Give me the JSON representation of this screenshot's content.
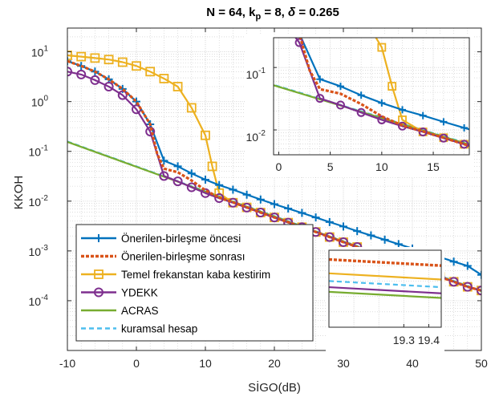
{
  "chart_data": {
    "type": "line",
    "title": {
      "main": "N = 64, k",
      "sub": "p",
      "mid": " = 8, ",
      "greek": "δ",
      "tail": " = 0.265"
    },
    "xlabel": "SİGO(dB)",
    "ylabel": "KKOH",
    "xlim": [
      -10,
      50
    ],
    "ylim": [
      1e-05,
      30
    ],
    "yscale": "log",
    "grid": true,
    "legend_position": "bottom-left",
    "x_ticks": [
      {
        "v": -10,
        "label": "-10"
      },
      {
        "v": 0,
        "label": "0"
      },
      {
        "v": 10,
        "label": "10"
      },
      {
        "v": 20,
        "label": "20"
      },
      {
        "v": 30,
        "label": "30"
      },
      {
        "v": 40,
        "label": "40"
      },
      {
        "v": 50,
        "label": "50"
      }
    ],
    "y_ticks": [
      {
        "v": 10,
        "base": "10",
        "exp": "1"
      },
      {
        "v": 1,
        "base": "10",
        "exp": "0"
      },
      {
        "v": 0.1,
        "base": "10",
        "exp": "-1"
      },
      {
        "v": 0.01,
        "base": "10",
        "exp": "-2"
      },
      {
        "v": 0.001,
        "base": "10",
        "exp": "-3"
      },
      {
        "v": 0.0001,
        "base": "10",
        "exp": "-4"
      }
    ],
    "series": [
      {
        "name": "Önerilen-birleşme öncesi",
        "color": "#0072BD",
        "dash": "",
        "marker": "plus",
        "x": [
          -10,
          -8,
          -6,
          -4,
          -2,
          0,
          2,
          4,
          6,
          8,
          10,
          12,
          14,
          16,
          18,
          20,
          22,
          24,
          26,
          28,
          30,
          32,
          34,
          36,
          38,
          40,
          42,
          44,
          46,
          48,
          50
        ],
        "y": [
          6.5,
          5.2,
          4.0,
          2.8,
          1.8,
          1.0,
          0.35,
          0.065,
          0.05,
          0.036,
          0.027,
          0.021,
          0.017,
          0.0135,
          0.0108,
          0.0087,
          0.0071,
          0.0058,
          0.0047,
          0.0038,
          0.0031,
          0.0025,
          0.00205,
          0.00168,
          0.00137,
          0.00112,
          0.00092,
          0.00075,
          0.00061,
          0.0005,
          0.00033
        ]
      },
      {
        "name": "Önerilen-birleşme sonrası",
        "color": "#D95319",
        "dash": "4,2",
        "marker": "none",
        "x": [
          -10,
          -8,
          -6,
          -4,
          -2,
          0,
          2,
          3,
          4,
          6,
          8,
          10,
          12,
          14,
          16,
          18,
          20,
          22,
          24,
          26,
          28,
          30,
          32,
          34,
          36,
          38,
          40,
          42,
          44,
          46,
          48,
          50
        ],
        "y": [
          6.5,
          5.2,
          4.0,
          2.8,
          1.8,
          1.0,
          0.35,
          0.09,
          0.045,
          0.038,
          0.026,
          0.0165,
          0.0118,
          0.0095,
          0.0075,
          0.0059,
          0.0047,
          0.0038,
          0.003,
          0.0024,
          0.0019,
          0.0015,
          0.0012,
          0.00095,
          0.00076,
          0.0006,
          0.00048,
          0.00038,
          0.0003,
          0.00024,
          0.00019,
          0.00016
        ]
      },
      {
        "name": "Temel frekanstan kaba kestirim",
        "color": "#EDB120",
        "dash": "",
        "marker": "square",
        "x": [
          -10,
          -8,
          -6,
          -4,
          -2,
          0,
          2,
          4,
          6,
          8,
          10,
          11,
          12,
          14,
          16,
          18,
          20,
          22,
          24,
          26,
          28,
          30,
          32,
          34,
          36,
          38,
          40,
          42,
          44,
          46,
          48,
          50
        ],
        "y": [
          8.5,
          8.0,
          7.5,
          7.0,
          6.2,
          5.2,
          4.0,
          2.9,
          2.0,
          0.75,
          0.21,
          0.05,
          0.0145,
          0.0093,
          0.0075,
          0.0059,
          0.0047,
          0.0037,
          0.003,
          0.0024,
          0.0019,
          0.0015,
          0.0012,
          0.00095,
          0.00076,
          0.0006,
          0.00048,
          0.00038,
          0.0003,
          0.00024,
          0.00019,
          0.00016
        ]
      },
      {
        "name": "YDEKK",
        "color": "#7E2F8E",
        "dash": "",
        "marker": "circle",
        "x": [
          -10,
          -8,
          -6,
          -4,
          -2,
          0,
          2,
          4,
          6,
          8,
          10,
          12,
          14,
          16,
          18,
          20,
          22,
          24,
          26,
          28,
          30,
          32,
          34,
          36,
          38,
          40,
          42,
          44,
          46,
          48,
          50
        ],
        "y": [
          4.0,
          3.5,
          2.7,
          2.0,
          1.35,
          0.7,
          0.25,
          0.032,
          0.025,
          0.019,
          0.0145,
          0.0115,
          0.0093,
          0.0074,
          0.0059,
          0.0047,
          0.0037,
          0.003,
          0.0024,
          0.0019,
          0.0015,
          0.0012,
          0.00095,
          0.00076,
          0.0006,
          0.00048,
          0.00038,
          0.0003,
          0.00024,
          0.00019,
          0.00016
        ]
      },
      {
        "name": "ACRAS",
        "color": "#77AC30",
        "dash": "",
        "marker": "none",
        "x": [
          -10,
          50
        ],
        "y": [
          0.155,
          0.000155
        ]
      },
      {
        "name": "kuramsal hesap",
        "color": "#4DBEEE",
        "dash": "6,4",
        "marker": "none",
        "x": [
          -10,
          50
        ],
        "y": [
          0.158,
          0.000158
        ]
      }
    ],
    "inset_top": {
      "xlim": [
        -0.5,
        18.5
      ],
      "ylim": [
        0.004,
        0.3
      ],
      "x_ticks": [
        {
          "v": 0,
          "label": "0"
        },
        {
          "v": 5,
          "label": "5"
        },
        {
          "v": 10,
          "label": "10"
        },
        {
          "v": 15,
          "label": "15"
        }
      ],
      "y_ticks": [
        {
          "v": 0.1,
          "base": "10",
          "exp": "-1"
        },
        {
          "v": 0.01,
          "base": "10",
          "exp": "-2"
        }
      ]
    },
    "inset_zoom": {
      "xlim": [
        19.0,
        19.45
      ],
      "x_ticks": [
        {
          "v": 19.3,
          "label": "19.3"
        },
        {
          "v": 19.4,
          "label": "19.4"
        }
      ],
      "lines": [
        {
          "name": "Önerilen-birleşme sonrası",
          "y_start": 0.88,
          "y_end": 0.8
        },
        {
          "name": "Temel frekanstan kaba kestirim",
          "y_start": 0.7,
          "y_end": 0.62
        },
        {
          "name": "kuramsal hesap",
          "y_start": 0.6,
          "y_end": 0.52
        },
        {
          "name": "YDEKK",
          "y_start": 0.52,
          "y_end": 0.44
        },
        {
          "name": "ACRAS",
          "y_start": 0.46,
          "y_end": 0.38
        }
      ]
    }
  }
}
